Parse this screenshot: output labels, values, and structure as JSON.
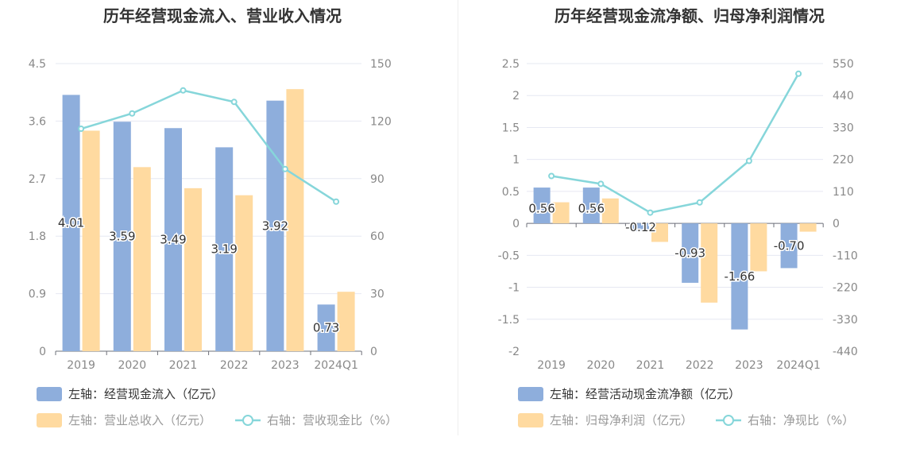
{
  "colors": {
    "bar_blue": "#8EAEDC",
    "bar_orange": "#FFDAA0",
    "line_cyan": "#86D6DA",
    "axis_text": "#888888",
    "grid": "#E6E8F2",
    "label_text": "#333333",
    "legend_active": "#333333",
    "legend_inactive": "#999999"
  },
  "chart_data": [
    {
      "type": "bar",
      "title": "历年经营现金流入、营业收入情况",
      "categories": [
        "2019",
        "2020",
        "2021",
        "2022",
        "2023",
        "2024Q1"
      ],
      "left_axis": {
        "ticks": [
          "0",
          "0.9",
          "1.8",
          "2.7",
          "3.6",
          "4.5"
        ],
        "range": [
          0,
          4.5
        ]
      },
      "right_axis": {
        "ticks": [
          "0",
          "30",
          "60",
          "90",
          "120",
          "150"
        ],
        "range": [
          0,
          150
        ]
      },
      "series": [
        {
          "name": "左轴：经营现金流入（亿元）",
          "type": "bar",
          "axis": "left",
          "values": [
            4.01,
            3.59,
            3.49,
            3.19,
            3.92,
            0.73
          ],
          "labels": [
            "4.01",
            "3.59",
            "3.49",
            "3.19",
            "3.92",
            "0.73"
          ]
        },
        {
          "name": "左轴：营业总收入（亿元）",
          "type": "bar",
          "axis": "left",
          "values": [
            3.45,
            2.88,
            2.55,
            2.44,
            4.1,
            0.93
          ]
        },
        {
          "name": "右轴：营收现金比（%）",
          "type": "line",
          "axis": "right",
          "values": [
            116,
            124,
            136,
            130,
            95,
            78
          ]
        }
      ],
      "legend": [
        "左轴：经营现金流入（亿元）",
        "左轴：营业总收入（亿元）",
        "右轴：营收现金比（%）"
      ]
    },
    {
      "type": "bar",
      "title": "历年经营现金流净额、归母净利润情况",
      "categories": [
        "2019",
        "2020",
        "2021",
        "2022",
        "2023",
        "2024Q1"
      ],
      "left_axis": {
        "ticks": [
          "-2",
          "-1.5",
          "-1",
          "-0.5",
          "0",
          "0.5",
          "1",
          "1.5",
          "2",
          "2.5"
        ],
        "range": [
          -2,
          2.5
        ]
      },
      "right_axis": {
        "ticks": [
          "-440",
          "-330",
          "-220",
          "-110",
          "0",
          "110",
          "220",
          "330",
          "440",
          "550"
        ],
        "range": [
          -440,
          550
        ]
      },
      "series": [
        {
          "name": "左轴：经营活动现金流净额（亿元）",
          "type": "bar",
          "axis": "left",
          "values": [
            0.56,
            0.56,
            -0.12,
            -0.93,
            -1.66,
            -0.7
          ],
          "labels": [
            "0.56",
            "0.56",
            "-0.12",
            "-0.93",
            "-1.66",
            "-0.70"
          ]
        },
        {
          "name": "左轴：归母净利润（亿元）",
          "type": "bar",
          "axis": "left",
          "values": [
            0.33,
            0.39,
            -0.29,
            -1.24,
            -0.75,
            -0.13
          ]
        },
        {
          "name": "右轴：净现比（%）",
          "type": "line",
          "axis": "right",
          "values": [
            163,
            136,
            37,
            72,
            215,
            515
          ]
        }
      ],
      "legend": [
        "左轴：经营活动现金流净额（亿元）",
        "左轴：归母净利润（亿元）",
        "右轴：净现比（%）"
      ]
    }
  ]
}
